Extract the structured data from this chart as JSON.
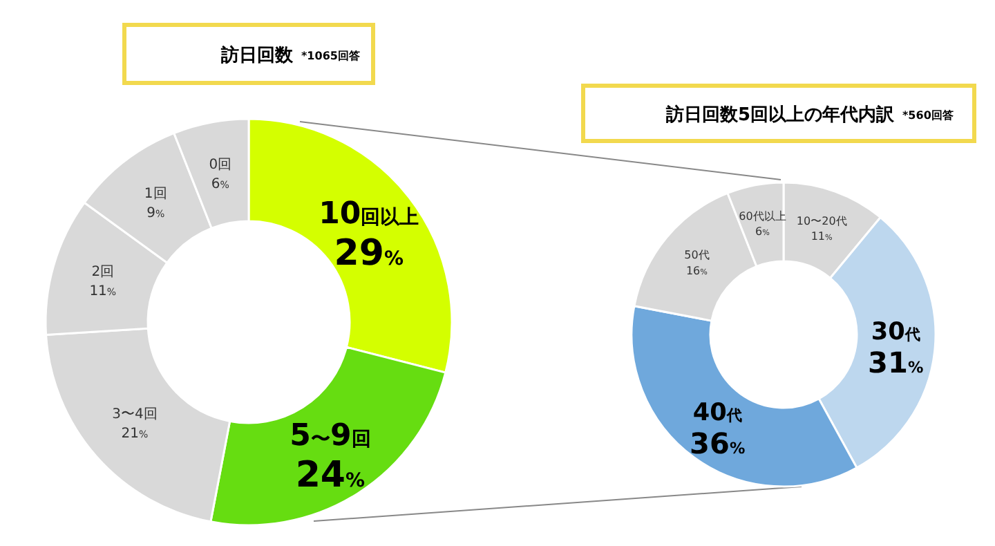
{
  "chart_data": [
    {
      "type": "donut",
      "title": "訪日回数",
      "subtitle": "*1065回答",
      "categories": [
        "10回以上",
        "5〜9回",
        "3〜4回",
        "2回",
        "1回",
        "0回"
      ],
      "values": [
        29,
        24,
        21,
        11,
        9,
        6
      ],
      "value_labels": [
        "29%",
        "24%",
        "21%",
        "11%",
        "9%",
        "6%"
      ],
      "colors": [
        "#d4ff00",
        "#66dd11",
        "#d9d9d9",
        "#d9d9d9",
        "#d9d9d9",
        "#d9d9d9"
      ]
    },
    {
      "type": "donut",
      "title": "訪日回数5回以上の年代内訳",
      "subtitle": "*560回答",
      "categories": [
        "10〜20代",
        "30代",
        "40代",
        "50代",
        "60代以上"
      ],
      "values": [
        11,
        31,
        36,
        16,
        6
      ],
      "value_labels": [
        "11%",
        "31%",
        "36%",
        "16%",
        "6%"
      ],
      "colors": [
        "#d9d9d9",
        "#bdd7ee",
        "#6fa8dc",
        "#d9d9d9",
        "#d9d9d9"
      ]
    }
  ]
}
